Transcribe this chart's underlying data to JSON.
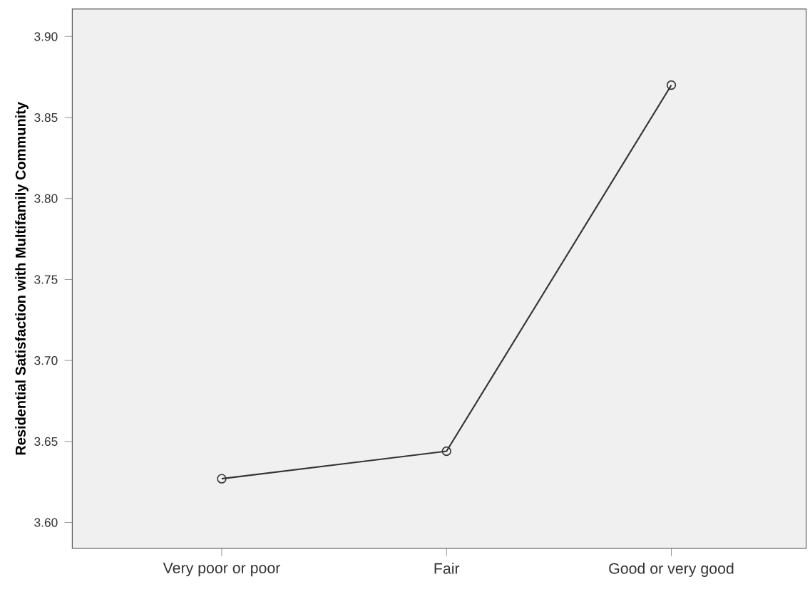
{
  "chart_data": {
    "type": "line",
    "ylabel": "Residential Satisfaction with Multifamily Community",
    "categories": [
      "Very poor or poor",
      "Fair",
      "Good or very good"
    ],
    "series": [
      {
        "color": "#333333",
        "values": [
          3.627,
          3.644,
          3.87
        ]
      }
    ],
    "ylim": [
      3.584,
      3.917
    ],
    "yticks": [
      {
        "value": 3.6,
        "label": "3.60"
      },
      {
        "value": 3.65,
        "label": "3.65"
      },
      {
        "value": 3.7,
        "label": "3.70"
      },
      {
        "value": 3.75,
        "label": "3.75"
      },
      {
        "value": 3.8,
        "label": "3.80"
      },
      {
        "value": 3.85,
        "label": "3.85"
      },
      {
        "value": 3.9,
        "label": "3.90"
      }
    ],
    "marker": "circle",
    "line_style": "solid"
  }
}
